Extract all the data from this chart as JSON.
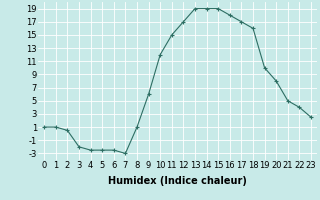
{
  "x": [
    0,
    1,
    2,
    3,
    4,
    5,
    6,
    7,
    8,
    9,
    10,
    11,
    12,
    13,
    14,
    15,
    16,
    17,
    18,
    19,
    20,
    21,
    22,
    23
  ],
  "y": [
    1,
    1,
    0.5,
    -2,
    -2.5,
    -2.5,
    -2.5,
    -3,
    1,
    6,
    12,
    15,
    17,
    19,
    19,
    19,
    18,
    17,
    16,
    10,
    8,
    5,
    4,
    2.5
  ],
  "line_color": "#2d6e63",
  "bg_color": "#c8eae8",
  "grid_color": "#ffffff",
  "xlabel": "Humidex (Indice chaleur)",
  "xlim": [
    -0.5,
    23.5
  ],
  "ylim": [
    -4,
    20
  ],
  "yticks": [
    -3,
    -1,
    1,
    3,
    5,
    7,
    9,
    11,
    13,
    15,
    17,
    19
  ],
  "xticks": [
    0,
    1,
    2,
    3,
    4,
    5,
    6,
    7,
    8,
    9,
    10,
    11,
    12,
    13,
    14,
    15,
    16,
    17,
    18,
    19,
    20,
    21,
    22,
    23
  ],
  "xlabel_fontsize": 7,
  "tick_fontsize": 6
}
